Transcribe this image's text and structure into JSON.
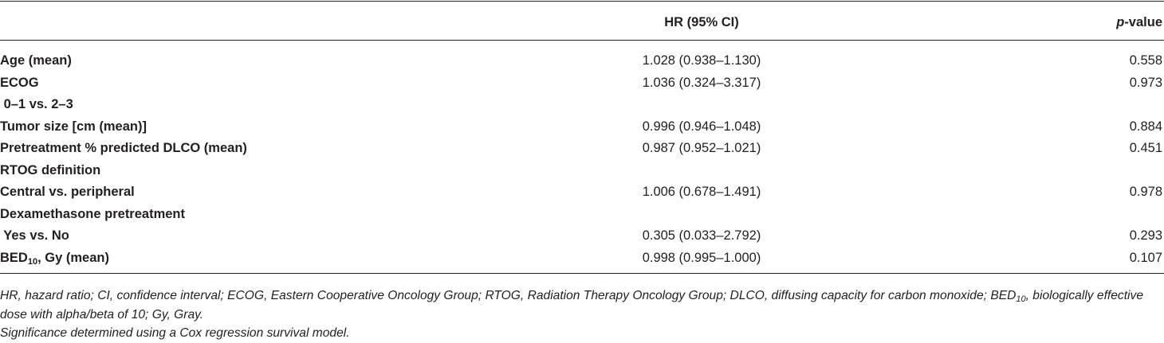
{
  "table": {
    "header": {
      "hr": "HR (95% CI)",
      "p_italic": "p",
      "p_rest": "-value"
    },
    "rows": [
      {
        "label": "Age (mean)",
        "hr": "1.028 (0.938–1.130)",
        "p": "0.558"
      },
      {
        "label": "ECOG",
        "hr": "1.036 (0.324–3.317)",
        "p": "0.973"
      },
      {
        "label": " 0–1 vs. 2–3"
      },
      {
        "label": "Tumor size [cm (mean)]",
        "hr": "0.996 (0.946–1.048)",
        "p": "0.884"
      },
      {
        "label": "Pretreatment % predicted DLCO (mean)",
        "hr": "0.987 (0.952–1.021)",
        "p": "0.451"
      },
      {
        "label": "RTOG definition"
      },
      {
        "label": "Central vs. peripheral",
        "hr": "1.006 (0.678–1.491)",
        "p": "0.978"
      },
      {
        "label": "Dexamethasone pretreatment"
      },
      {
        "label": " Yes vs. No",
        "hr": "0.305 (0.033–2.792)",
        "p": "0.293"
      },
      {
        "label": "BED",
        "label_sub": "10",
        "label_rest": ", Gy (mean)",
        "hr": "0.998 (0.995–1.000)",
        "p": "0.107"
      }
    ]
  },
  "footnote": {
    "abbrev_start": "HR, hazard ratio; CI, confidence interval; ECOG, Eastern Cooperative Oncology Group; RTOG, Radiation Therapy Oncology Group; DLCO, diffusing capacity for carbon monoxide; BED",
    "abbrev_sub": "10",
    "abbrev_end": ", biologically effective dose with alpha/beta of 10; Gy, Gray.",
    "significance": "Significance determined using a Cox regression survival model."
  }
}
